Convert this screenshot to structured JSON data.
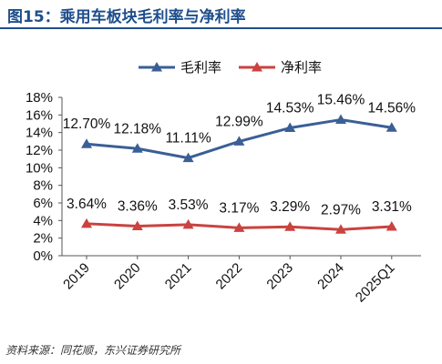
{
  "figure_title": "图15：乘用车板块毛利率与净利率",
  "source": "资料来源：同花顺，东兴证券研究所",
  "colors": {
    "gross": "#3a5f96",
    "net": "#c9433f",
    "title": "#1f4e8c"
  },
  "chart_data": {
    "type": "line",
    "categories": [
      "2019",
      "2020",
      "2021",
      "2022",
      "2023",
      "2024",
      "2025Q1"
    ],
    "ylim": [
      0,
      18
    ],
    "yticks": [
      "0%",
      "2%",
      "4%",
      "6%",
      "8%",
      "10%",
      "12%",
      "14%",
      "16%",
      "18%"
    ],
    "legend_position": "top-center",
    "grid": false,
    "series": [
      {
        "name": "毛利率",
        "marker": "triangle",
        "values": [
          12.7,
          12.18,
          11.11,
          12.99,
          14.53,
          15.46,
          14.56
        ],
        "labels": [
          "12.70%",
          "12.18%",
          "11.11%",
          "12.99%",
          "14.53%",
          "15.46%",
          "14.56%"
        ]
      },
      {
        "name": "净利率",
        "marker": "triangle",
        "values": [
          3.64,
          3.36,
          3.53,
          3.17,
          3.29,
          2.97,
          3.31
        ],
        "labels": [
          "3.64%",
          "3.36%",
          "3.53%",
          "3.17%",
          "3.29%",
          "2.97%",
          "3.31%"
        ]
      }
    ]
  }
}
